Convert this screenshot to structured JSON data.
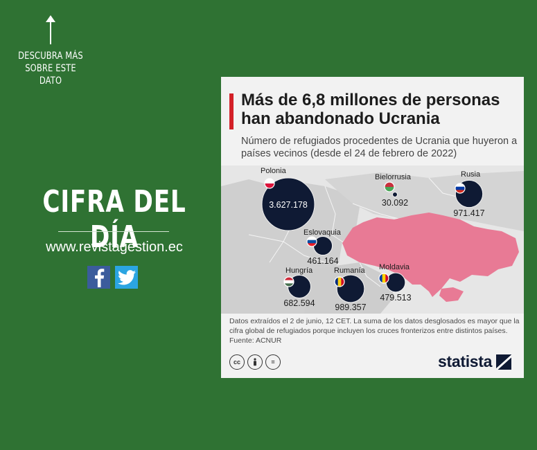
{
  "cta": {
    "text_lines": [
      "DESCUBRA MÁS",
      "SOBRE ESTE",
      "DATO"
    ]
  },
  "headline": "CIFRA DEL DÍA",
  "website": "www.revistagestion.ec",
  "social": {
    "facebook_icon": "facebook-icon",
    "twitter_icon": "twitter-icon"
  },
  "colors": {
    "background": "#2f7233",
    "accent_bar": "#d32027",
    "bubble": "#0f1a34",
    "ukraine": "#e87a95",
    "card": "#f2f2f2"
  },
  "card": {
    "title": "Más de 6,8 millones de personas han abandonado Ucrania",
    "subtitle": "Número de refugiados procedentes de Ucrania que huyeron a países vecinos (desde el 24 de febrero de 2022)",
    "note": "Datos extraídos el 2 de junio, 12 CET. La suma de los datos desglosados es mayor que la cifra global de refugiados porque incluyen los cruces fronterizos entre distintos países.",
    "source": "Fuente: ACNUR",
    "license_icons": [
      "cc-icon",
      "by-icon",
      "nd-icon"
    ],
    "brand": "statista"
  },
  "chart_data": {
    "type": "bubble-map",
    "title": "Más de 6,8 millones de personas han abandonado Ucrania",
    "unit": "refugiados",
    "points": [
      {
        "country": "Polonia",
        "value": 3627178,
        "label": "3.627.178"
      },
      {
        "country": "Bielorrusia",
        "value": 30092,
        "label": "30.092"
      },
      {
        "country": "Rusia",
        "value": 971417,
        "label": "971.417"
      },
      {
        "country": "Eslovaquia",
        "value": 461164,
        "label": "461.164"
      },
      {
        "country": "Hungría",
        "value": 682594,
        "label": "682.594"
      },
      {
        "country": "Rumanía",
        "value": 989357,
        "label": "989.357"
      },
      {
        "country": "Moldavia",
        "value": 479513,
        "label": "479.513"
      }
    ]
  }
}
